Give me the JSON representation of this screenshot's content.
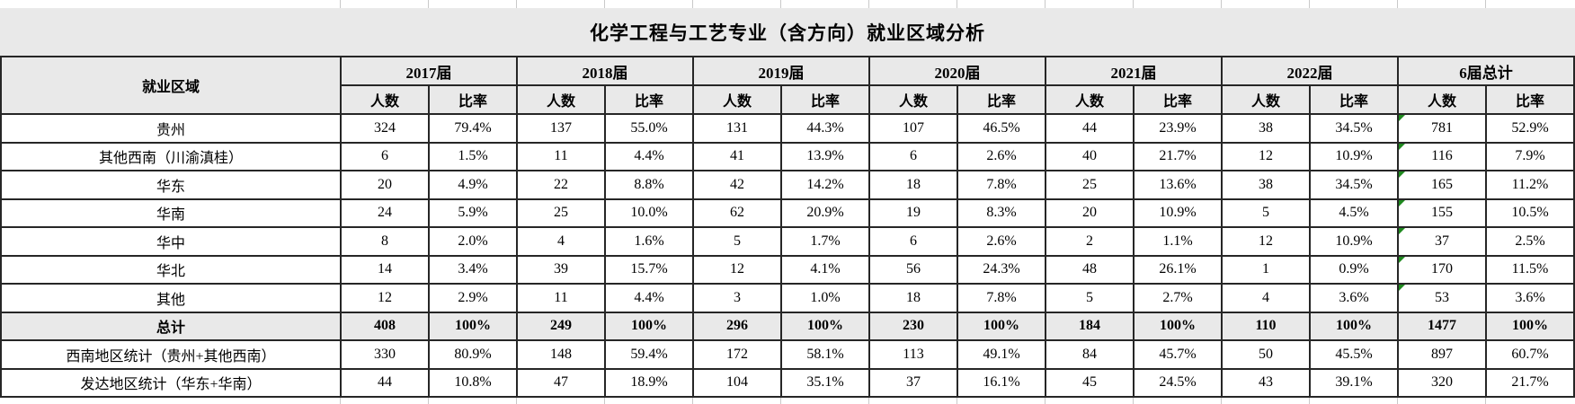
{
  "title": "化学工程与工艺专业（含方向）就业区域分析",
  "table": {
    "region_header": "就业区域",
    "count_label": "人数",
    "ratio_label": "比率",
    "year_groups": [
      "2017届",
      "2018届",
      "2019届",
      "2020届",
      "2021届",
      "2022届",
      "6届总计"
    ],
    "rows": [
      {
        "label": "贵州",
        "values": [
          "324",
          "79.4%",
          "137",
          "55.0%",
          "131",
          "44.3%",
          "107",
          "46.5%",
          "44",
          "23.9%",
          "38",
          "34.5%",
          "781",
          "52.9%"
        ],
        "emphasis": false,
        "error_flag": true
      },
      {
        "label": "其他西南（川渝滇桂）",
        "values": [
          "6",
          "1.5%",
          "11",
          "4.4%",
          "41",
          "13.9%",
          "6",
          "2.6%",
          "40",
          "21.7%",
          "12",
          "10.9%",
          "116",
          "7.9%"
        ],
        "emphasis": false,
        "error_flag": true
      },
      {
        "label": "华东",
        "values": [
          "20",
          "4.9%",
          "22",
          "8.8%",
          "42",
          "14.2%",
          "18",
          "7.8%",
          "25",
          "13.6%",
          "38",
          "34.5%",
          "165",
          "11.2%"
        ],
        "emphasis": false,
        "error_flag": true
      },
      {
        "label": "华南",
        "values": [
          "24",
          "5.9%",
          "25",
          "10.0%",
          "62",
          "20.9%",
          "19",
          "8.3%",
          "20",
          "10.9%",
          "5",
          "4.5%",
          "155",
          "10.5%"
        ],
        "emphasis": false,
        "error_flag": true
      },
      {
        "label": "华中",
        "values": [
          "8",
          "2.0%",
          "4",
          "1.6%",
          "5",
          "1.7%",
          "6",
          "2.6%",
          "2",
          "1.1%",
          "12",
          "10.9%",
          "37",
          "2.5%"
        ],
        "emphasis": false,
        "error_flag": true
      },
      {
        "label": "华北",
        "values": [
          "14",
          "3.4%",
          "39",
          "15.7%",
          "12",
          "4.1%",
          "56",
          "24.3%",
          "48",
          "26.1%",
          "1",
          "0.9%",
          "170",
          "11.5%"
        ],
        "emphasis": false,
        "error_flag": true
      },
      {
        "label": "其他",
        "values": [
          "12",
          "2.9%",
          "11",
          "4.4%",
          "3",
          "1.0%",
          "18",
          "7.8%",
          "5",
          "2.7%",
          "4",
          "3.6%",
          "53",
          "3.6%"
        ],
        "emphasis": false,
        "error_flag": true
      },
      {
        "label": "总计",
        "values": [
          "408",
          "100%",
          "249",
          "100%",
          "296",
          "100%",
          "230",
          "100%",
          "184",
          "100%",
          "110",
          "100%",
          "1477",
          "100%"
        ],
        "emphasis": true,
        "error_flag": false
      },
      {
        "label": "西南地区统计（贵州+其他西南）",
        "values": [
          "330",
          "80.9%",
          "148",
          "59.4%",
          "172",
          "58.1%",
          "113",
          "49.1%",
          "84",
          "45.7%",
          "50",
          "45.5%",
          "897",
          "60.7%"
        ],
        "emphasis": false,
        "error_flag": false
      },
      {
        "label": "发达地区统计（华东+华南）",
        "values": [
          "44",
          "10.8%",
          "47",
          "18.9%",
          "104",
          "35.1%",
          "37",
          "16.1%",
          "45",
          "24.5%",
          "43",
          "39.1%",
          "320",
          "21.7%"
        ],
        "emphasis": false,
        "error_flag": false
      }
    ]
  },
  "colors": {
    "header_fill": "#e9e9e9",
    "border": "#262626",
    "gridline": "#c9c9c9",
    "error_indicator_green": "#1f8a1f",
    "text": "#000000",
    "background": "#ffffff"
  }
}
